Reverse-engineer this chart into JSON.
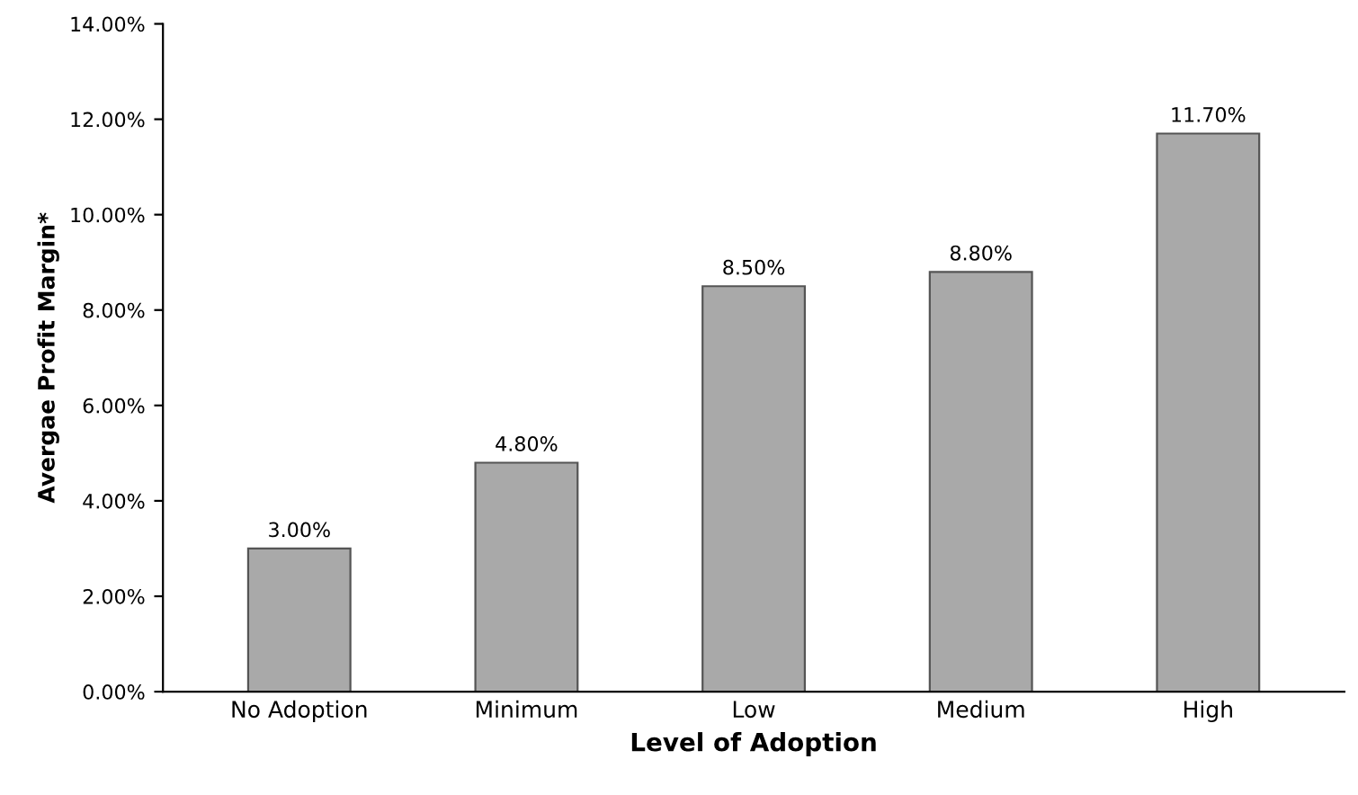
{
  "chart_data": {
    "type": "bar",
    "xlabel": "Level of Adoption",
    "ylabel": "Avergae Profit Margin*",
    "categories": [
      "No Adoption",
      "Minimum",
      "Low",
      "Medium",
      "High"
    ],
    "values": [
      3.0,
      4.8,
      8.5,
      8.8,
      11.7
    ],
    "value_labels": [
      "3.00%",
      "4.80%",
      "8.50%",
      "8.80%",
      "11.70%"
    ],
    "color": "#a9a9a9",
    "ylim": [
      0,
      14
    ],
    "yticks": [
      {
        "value": 0,
        "label": "0.00%"
      },
      {
        "value": 2,
        "label": "2.00%"
      },
      {
        "value": 4,
        "label": "4.00%"
      },
      {
        "value": 6,
        "label": "6.00%"
      },
      {
        "value": 8,
        "label": "8.00%"
      },
      {
        "value": 10,
        "label": "10.00%"
      },
      {
        "value": 12,
        "label": "12.00%"
      },
      {
        "value": 14,
        "label": "14.00%"
      }
    ],
    "grid": false,
    "legend": false
  }
}
